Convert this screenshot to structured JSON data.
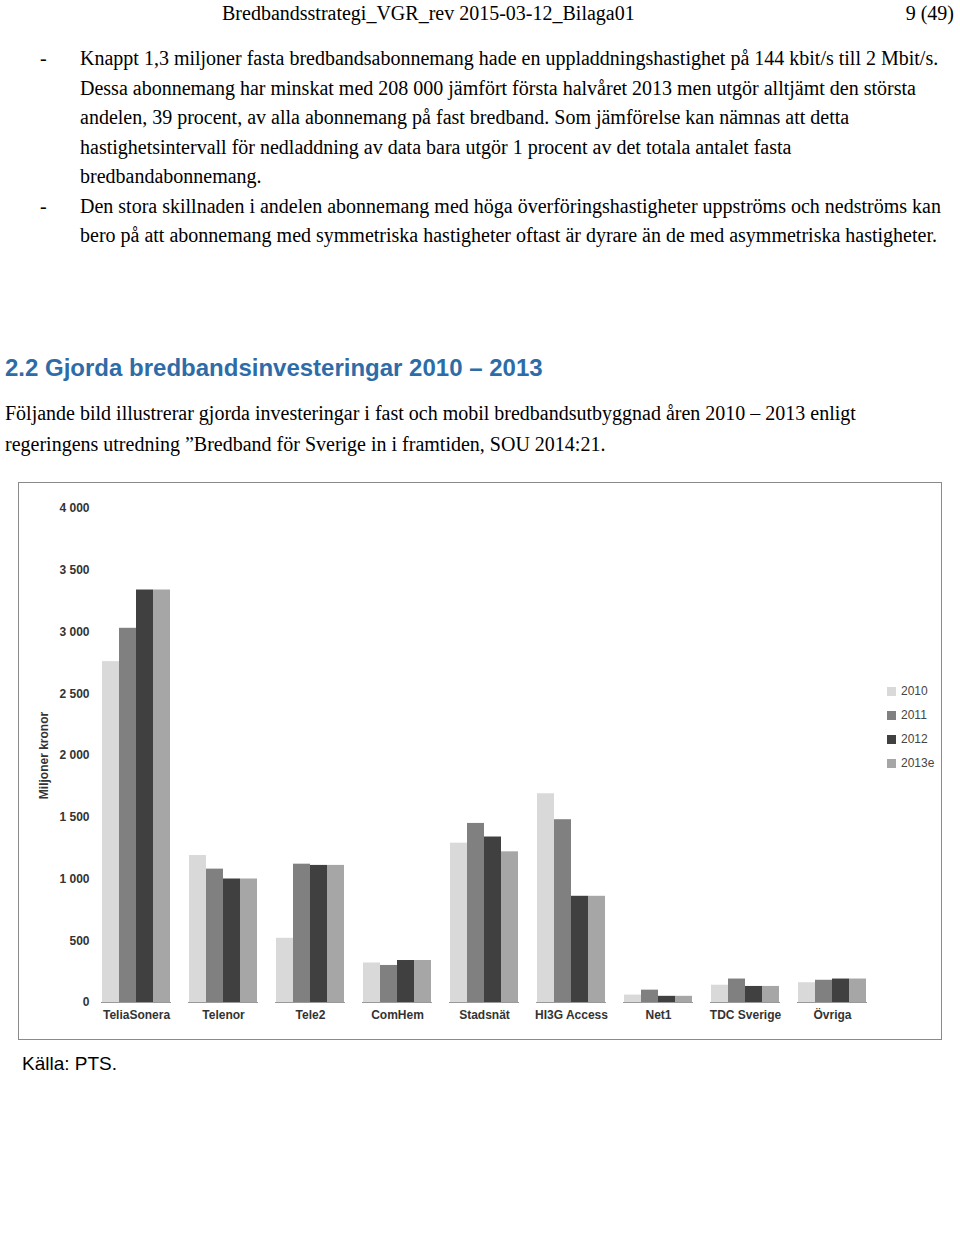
{
  "header": {
    "title": "Bredbandsstrategi_VGR_rev 2015-03-12_Bilaga01",
    "page": "9 (49)"
  },
  "bullets": [
    "Knappt 1,3 miljoner fasta bredbandsabonnemang hade en uppladdningshastighet på 144 kbit/s till 2 Mbit/s. Dessa abonnemang har minskat med 208 000 jämfört första halvåret 2013 men utgör alltjämt den största andelen, 39 procent, av alla abonnemang på fast bredband. Som jämförelse kan nämnas att detta hastighetsintervall för nedladdning av data bara utgör 1 procent av det totala antalet fasta bredbandabonnemang.",
    "Den stora skillnaden i andelen abonnemang med höga överföringshastigheter uppströms och nedströms kan bero på att abonnemang med symmetriska hastigheter oftast är dyrare än de med asymmetriska hastigheter."
  ],
  "heading": "2.2 Gjorda bredbandsinvesteringar 2010 – 2013",
  "intro": "Följande bild illustrerar gjorda investeringar i fast och mobil bredbandsutbyggnad åren 2010 – 2013 enligt regeringens utredning ”Bredband för Sverige in i framtiden, SOU 2014:21.",
  "chart_data": {
    "type": "bar",
    "y_label": "Miljoner kronor",
    "categories": [
      "TeliaSonera",
      "Telenor",
      "Tele2",
      "ComHem",
      "Stadsnät",
      "HI3G Access",
      "Net1",
      "TDC Sverige",
      "Övriga"
    ],
    "series": [
      {
        "name": "2010",
        "color": "#d9d9d9",
        "values": [
          2760,
          1190,
          520,
          320,
          1290,
          1690,
          60,
          140,
          160
        ]
      },
      {
        "name": "2011",
        "color": "#808080",
        "values": [
          3030,
          1080,
          1120,
          300,
          1450,
          1480,
          100,
          190,
          180
        ]
      },
      {
        "name": "2012",
        "color": "#404040",
        "values": [
          3340,
          1000,
          1110,
          340,
          1340,
          860,
          50,
          130,
          190
        ]
      },
      {
        "name": "2013e",
        "color": "#a6a6a6",
        "values": [
          3340,
          1000,
          1110,
          340,
          1220,
          860,
          50,
          130,
          190
        ]
      }
    ],
    "ylim": [
      0,
      4000
    ],
    "yticks": [
      0,
      500,
      {
        "value": 1000,
        "label": "1 000"
      },
      {
        "value": 1500,
        "label": "1 500"
      },
      {
        "value": 2000,
        "label": "2 000"
      },
      {
        "value": 2500,
        "label": "2 500"
      },
      {
        "value": 3000,
        "label": "3 000"
      },
      {
        "value": 3500,
        "label": "3 500"
      },
      {
        "value": 4000,
        "label": "4 000"
      }
    ],
    "grid": false,
    "legend": "right"
  },
  "source": "Källa: PTS."
}
